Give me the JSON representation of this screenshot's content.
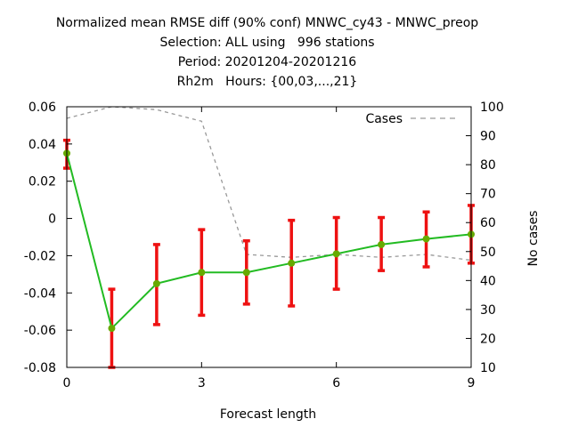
{
  "chart_data": {
    "type": "line",
    "title_lines": [
      "Normalized mean RMSE diff (90% conf) MNWC_cy43 - MNWC_preop",
      "Selection: ALL using   996 stations",
      "Period: 20201204-20201216",
      "Rh2m   Hours: {00,03,...,21}"
    ],
    "xlabel": "Forecast length",
    "ylabel_right": "No cases",
    "xlim": [
      0,
      9
    ],
    "ylim": [
      -0.08,
      0.06
    ],
    "y2lim": [
      10,
      100
    ],
    "x_ticks": [
      "0",
      "3",
      "6",
      "9"
    ],
    "y_ticks": [
      "-0.08",
      "-0.06",
      "-0.04",
      "-0.02",
      "0",
      "0.02",
      "0.04",
      "0.06"
    ],
    "y2_ticks": [
      "10",
      "20",
      "30",
      "40",
      "50",
      "60",
      "70",
      "80",
      "90",
      "100"
    ],
    "legend": {
      "label": "Cases",
      "position": "top-right"
    },
    "series": [
      {
        "name": "",
        "color": "#22bb22",
        "marker_color": "#66aa00",
        "errorbar_color": "#ee1111",
        "x": [
          0,
          1,
          2,
          3,
          4,
          5,
          6,
          7,
          8,
          9
        ],
        "y": [
          0.035,
          -0.059,
          -0.035,
          -0.029,
          -0.029,
          -0.024,
          -0.019,
          -0.014,
          -0.011,
          -0.0085
        ],
        "y_low": [
          0.027,
          -0.08,
          -0.057,
          -0.052,
          -0.046,
          -0.047,
          -0.038,
          -0.028,
          -0.026,
          -0.024
        ],
        "y_high": [
          0.042,
          -0.038,
          -0.014,
          -0.006,
          -0.012,
          -0.001,
          0.0005,
          0.0005,
          0.0035,
          0.007
        ]
      },
      {
        "name": "Cases",
        "axis": "right",
        "color": "#999999",
        "style": "dashed",
        "x": [
          0,
          1,
          2,
          3,
          4,
          5,
          6,
          7,
          8,
          9
        ],
        "y": [
          96,
          100,
          99,
          95,
          49,
          48,
          49,
          48,
          49,
          47
        ]
      }
    ]
  }
}
